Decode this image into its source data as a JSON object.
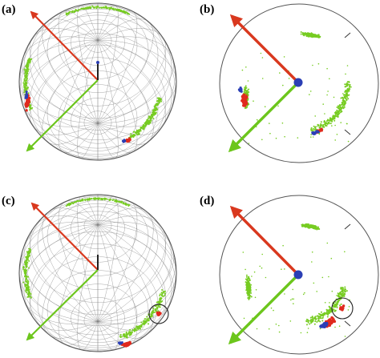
{
  "panels": [
    {
      "id": "a",
      "label": "(a)",
      "kind": "sphere"
    },
    {
      "id": "b",
      "label": "(b)",
      "kind": "projection"
    },
    {
      "id": "c",
      "label": "(c)",
      "kind": "sphere"
    },
    {
      "id": "d",
      "label": "(d)",
      "kind": "projection"
    }
  ],
  "colors": {
    "red_vector": "#d9381e",
    "green_vector": "#6cc61c",
    "points_green": "#77cc22",
    "points_red": "#e02a1e",
    "points_blue": "#2b3fb5",
    "center_dot": "#2b3fb5",
    "mesh": "#7a7a7a",
    "outline": "#555555"
  }
}
